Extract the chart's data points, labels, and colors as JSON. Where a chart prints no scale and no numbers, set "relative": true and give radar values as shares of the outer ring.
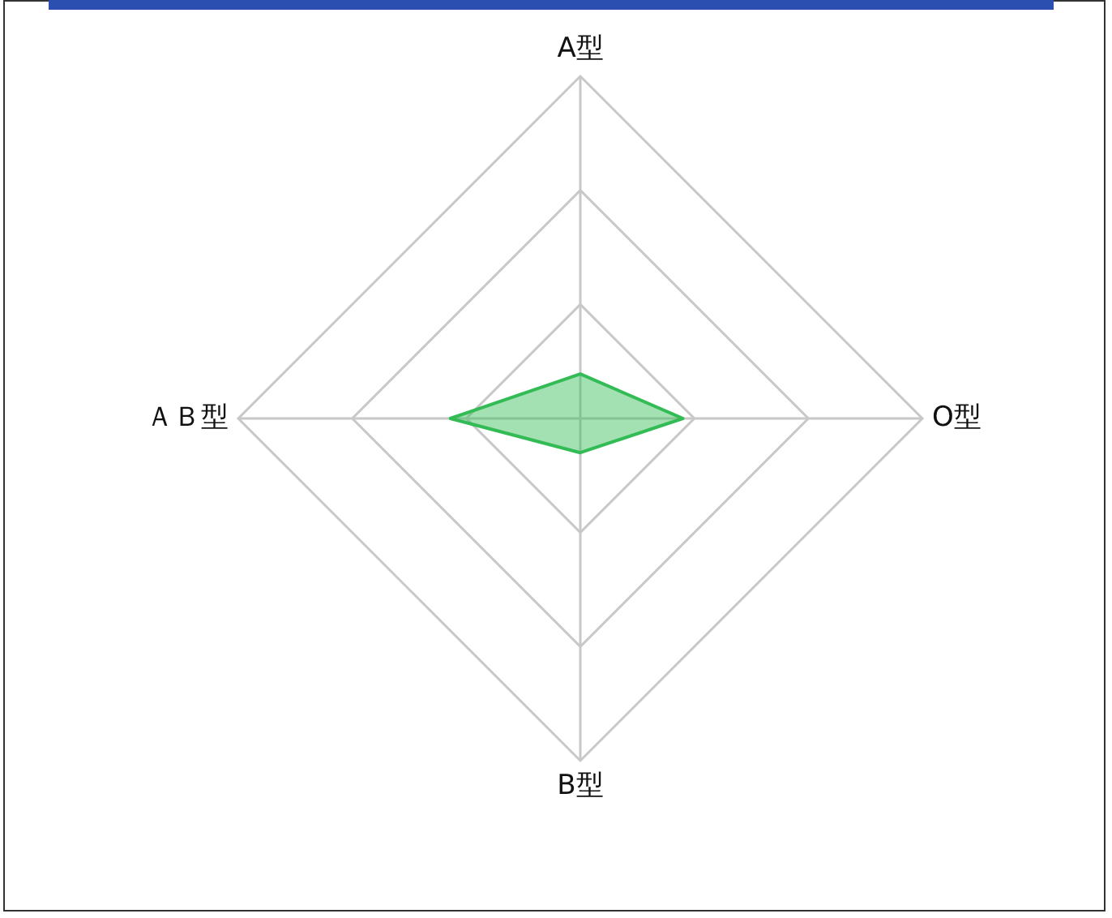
{
  "chart_data": {
    "type": "radar",
    "relative": true,
    "categories": [
      "A型",
      "O型",
      "B型",
      "ＡＢ型"
    ],
    "series": [
      {
        "color": "#33bb55",
        "values": [
          0.13,
          0.3,
          0.1,
          0.38
        ]
      }
    ],
    "grid": true,
    "legend": false
  }
}
